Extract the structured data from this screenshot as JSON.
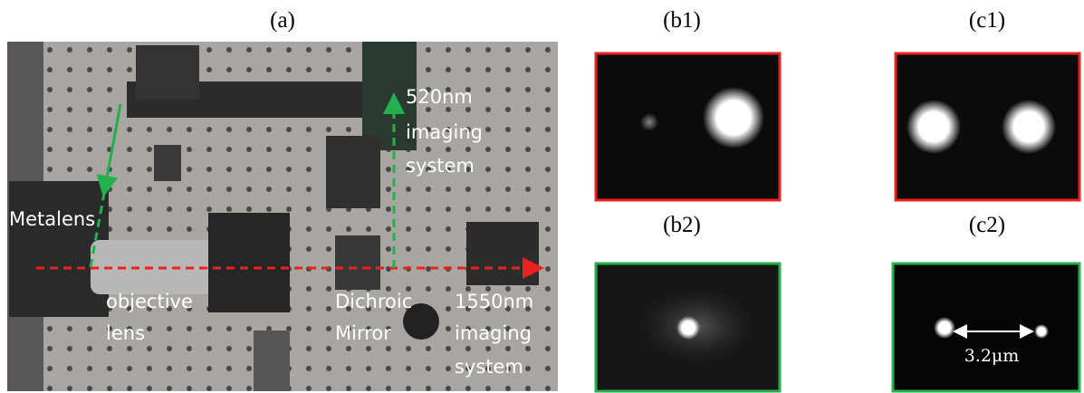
{
  "panels": {
    "a": {
      "label": "(a)",
      "annotations": {
        "green_system": [
          "520nm",
          "imaging",
          "system"
        ],
        "metalens": "Metalens",
        "objective": [
          "objective",
          "lens"
        ],
        "mirror": [
          "Dichroic",
          "Mirror"
        ],
        "red_system": [
          "1550nm",
          "imaging",
          "system"
        ]
      }
    },
    "b1": {
      "label": "(b1)"
    },
    "b2": {
      "label": "(b2)"
    },
    "c1": {
      "label": "(c1)"
    },
    "c2": {
      "label": "(c2)",
      "scale": "3.2μm"
    }
  }
}
